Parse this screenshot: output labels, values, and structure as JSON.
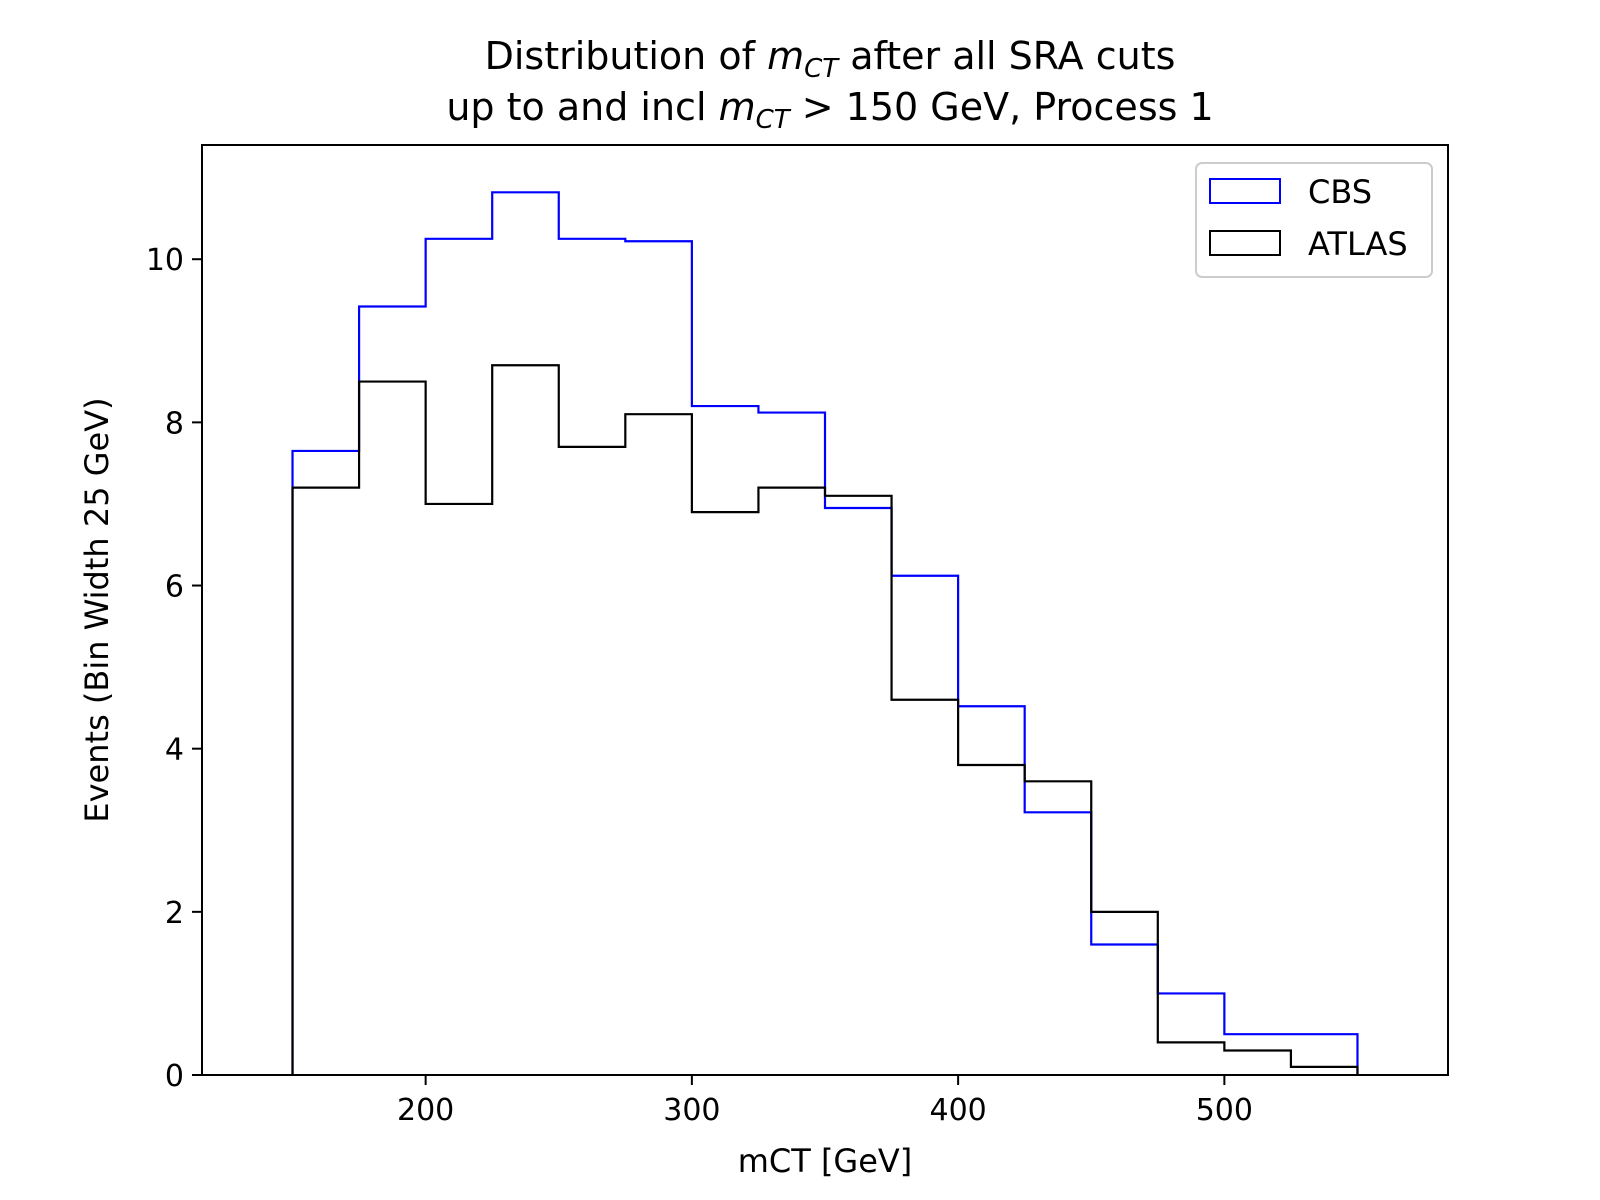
{
  "chart_data": {
    "type": "histogram-step",
    "title": {
      "line1_prefix": "Distribution of ",
      "line1_math": "m",
      "line1_sub": "CT",
      "line1_suffix": " after all SRA cuts",
      "line2_prefix": "up to and incl ",
      "line2_math": "m",
      "line2_sub": "CT",
      "line2_suffix": " > 150 GeV, Process 1"
    },
    "xlabel": "mCT [GeV]",
    "ylabel": "Events (Bin Width 25 GeV)",
    "xlim": [
      116,
      584
    ],
    "ylim": [
      0,
      11.4
    ],
    "xticks": [
      200,
      300,
      400,
      500
    ],
    "yticks": [
      0,
      2,
      4,
      6,
      8,
      10
    ],
    "bin_edges": [
      150,
      175,
      200,
      225,
      250,
      275,
      300,
      325,
      350,
      375,
      400,
      425,
      450,
      475,
      500,
      525,
      550
    ],
    "series": [
      {
        "name": "CBS",
        "color": "#0000ff",
        "values": [
          7.65,
          9.42,
          10.25,
          10.82,
          10.25,
          10.22,
          8.2,
          8.12,
          6.95,
          6.12,
          4.52,
          3.22,
          1.6,
          1.0,
          0.5,
          0.5
        ]
      },
      {
        "name": "ATLAS",
        "color": "#000000",
        "values": [
          7.2,
          8.5,
          7.0,
          8.7,
          7.7,
          8.1,
          6.9,
          7.2,
          7.1,
          4.6,
          3.8,
          3.6,
          2.0,
          0.4,
          0.3,
          0.1
        ]
      }
    ],
    "legend_position": "top-right"
  }
}
